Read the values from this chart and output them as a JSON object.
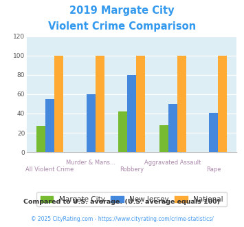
{
  "title_line1": "2019 Margate City",
  "title_line2": "Violent Crime Comparison",
  "categories": [
    "All Violent Crime",
    "Murder & Mans...",
    "Robbery",
    "Aggravated Assault",
    "Rape"
  ],
  "margate_city": [
    27,
    0,
    42,
    28,
    0
  ],
  "new_jersey": [
    55,
    60,
    80,
    50,
    41
  ],
  "national": [
    100,
    100,
    100,
    100,
    100
  ],
  "color_margate": "#77bb33",
  "color_nj": "#4488dd",
  "color_national": "#ffaa33",
  "ylim": [
    0,
    120
  ],
  "yticks": [
    0,
    20,
    40,
    60,
    80,
    100,
    120
  ],
  "legend_labels": [
    "Margate City",
    "New Jersey",
    "National"
  ],
  "footnote1": "Compared to U.S. average. (U.S. average equals 100)",
  "footnote2": "© 2025 CityRating.com - https://www.cityrating.com/crime-statistics/",
  "title_color": "#3399ee",
  "footnote1_color": "#333333",
  "footnote2_color": "#4499ee",
  "bg_color": "#ddeef5",
  "fig_bg": "#ffffff",
  "xlabel_color": "#aa88aa",
  "bar_width": 0.22
}
